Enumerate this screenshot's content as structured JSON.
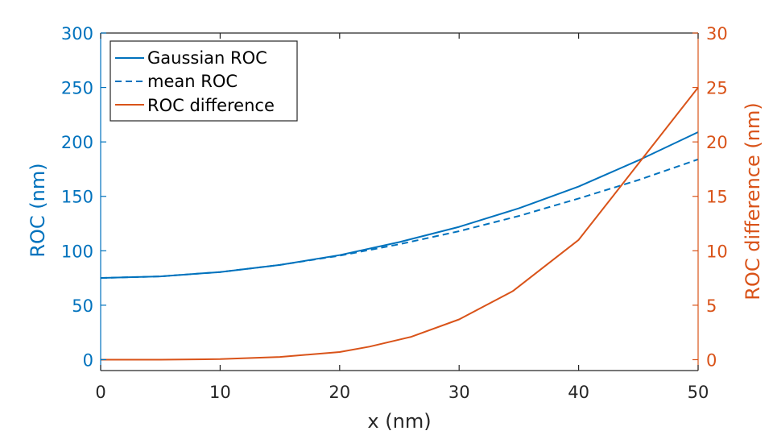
{
  "chart_data": {
    "type": "line",
    "xlabel": "x (nm)",
    "ylabel_left": "ROC (nm)",
    "ylabel_right": "ROC difference (nm)",
    "xlim": [
      0,
      50
    ],
    "ylim_left": [
      -10,
      300
    ],
    "ylim_right": [
      -1,
      30
    ],
    "xticks": [
      0,
      10,
      20,
      30,
      40,
      50
    ],
    "yticks_left": [
      0,
      50,
      100,
      150,
      200,
      250,
      300
    ],
    "yticks_right": [
      0,
      5,
      10,
      15,
      20,
      25,
      30
    ],
    "grid": false,
    "legend_position": "top-left",
    "series": [
      {
        "name": "Gaussian ROC",
        "axis": "left",
        "color": "#0072BD",
        "style": "solid",
        "x": [
          0,
          5,
          10,
          15,
          20,
          25,
          30,
          35,
          40,
          45,
          50
        ],
        "y": [
          75,
          76.5,
          80.5,
          87,
          96,
          108,
          122,
          139,
          159,
          183,
          209
        ]
      },
      {
        "name": "mean ROC",
        "axis": "left",
        "color": "#0072BD",
        "style": "dashed",
        "x": [
          0,
          5,
          10,
          15,
          20,
          25,
          30,
          35,
          40,
          45,
          50
        ],
        "y": [
          75,
          76.5,
          80.5,
          87,
          95.5,
          106,
          118,
          132,
          148,
          165,
          184
        ]
      },
      {
        "name": "ROC difference",
        "axis": "right",
        "color": "#D95319",
        "style": "solid",
        "x": [
          0,
          5,
          10,
          15,
          20,
          22.5,
          26,
          30,
          34.5,
          40,
          50
        ],
        "y": [
          0,
          0,
          0.05,
          0.25,
          0.7,
          1.2,
          2.1,
          3.7,
          6.3,
          11,
          25
        ]
      }
    ]
  }
}
